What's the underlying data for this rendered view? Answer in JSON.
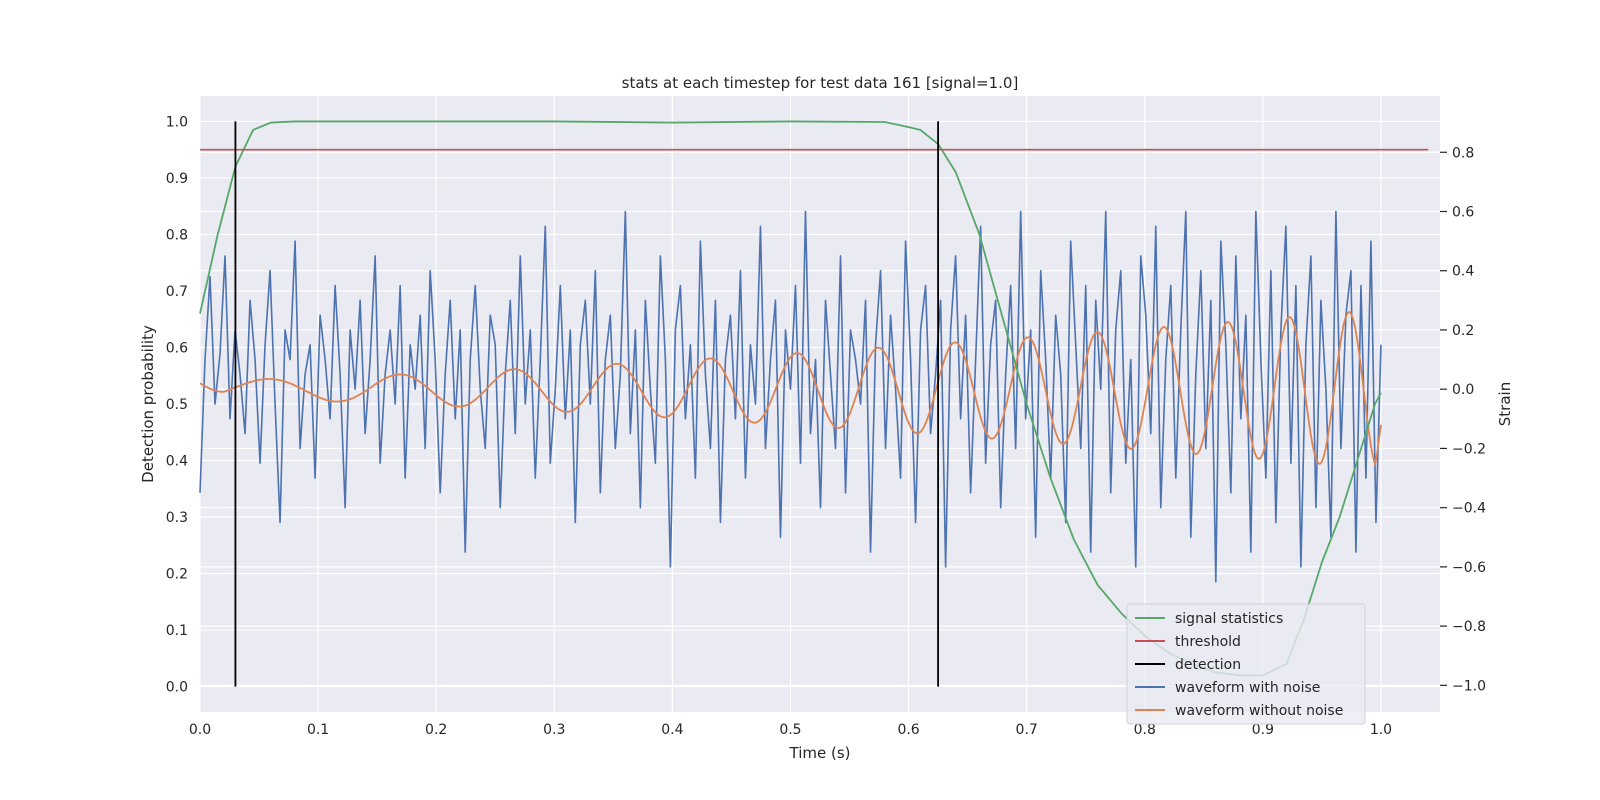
{
  "chart_data": {
    "type": "line",
    "title": "stats at each timestep for test data 161 [signal=1.0]",
    "xlabel": "Time (s)",
    "ylabel_left": "Detection probability",
    "ylabel_right": "Strain",
    "xlim": [
      0.0,
      1.05
    ],
    "ylim_left": [
      -0.045,
      1.045
    ],
    "ylim_right": [
      -1.09,
      0.99
    ],
    "x_ticks": [
      "0.0",
      "0.1",
      "0.2",
      "0.3",
      "0.4",
      "0.5",
      "0.6",
      "0.7",
      "0.8",
      "0.9",
      "1.0"
    ],
    "y_ticks_left": [
      "0.0",
      "0.1",
      "0.2",
      "0.3",
      "0.4",
      "0.5",
      "0.6",
      "0.7",
      "0.8",
      "0.9",
      "1.0"
    ],
    "y_ticks_right": [
      "−1.0",
      "−0.8",
      "−0.6",
      "−0.4",
      "−0.2",
      "0.0",
      "0.2",
      "0.4",
      "0.6",
      "0.8"
    ],
    "grid": true,
    "legend_position": "lower-right",
    "colors": {
      "signal_statistics": "#55a868",
      "threshold": "#c44e52",
      "detection": "#000000",
      "waveform_with_noise": "#4c72b0",
      "waveform_without_noise": "#dd8452",
      "plot_background": "#eaeaf2",
      "grid": "#ffffff"
    },
    "series": [
      {
        "name": "signal statistics",
        "axis": "left",
        "x": [
          0.0,
          0.015,
          0.03,
          0.045,
          0.06,
          0.08,
          0.1,
          0.2,
          0.3,
          0.4,
          0.5,
          0.58,
          0.6,
          0.61,
          0.625,
          0.64,
          0.66,
          0.68,
          0.7,
          0.72,
          0.74,
          0.76,
          0.78,
          0.8,
          0.82,
          0.84,
          0.86,
          0.88,
          0.9,
          0.92,
          0.935,
          0.95,
          0.965,
          0.98,
          0.995,
          1.0
        ],
        "values": [
          0.66,
          0.8,
          0.92,
          0.985,
          0.998,
          1.0,
          1.0,
          1.0,
          1.0,
          0.998,
          1.0,
          0.999,
          0.99,
          0.985,
          0.96,
          0.91,
          0.8,
          0.65,
          0.5,
          0.37,
          0.26,
          0.18,
          0.13,
          0.09,
          0.06,
          0.04,
          0.025,
          0.02,
          0.02,
          0.04,
          0.12,
          0.22,
          0.3,
          0.4,
          0.5,
          0.52
        ]
      },
      {
        "name": "threshold",
        "axis": "left",
        "x": [
          0.0,
          1.04
        ],
        "values": [
          0.95,
          0.95
        ]
      },
      {
        "name": "detection",
        "axis": "left",
        "x": [
          0.03,
          0.625
        ],
        "values": [
          1.0,
          1.0
        ],
        "style": "vertical lines from 0.0 to value"
      },
      {
        "name": "waveform with noise",
        "axis": "right",
        "x_start": 0.0,
        "x_end": 1.0,
        "values": [
          -0.35,
          0.1,
          0.38,
          -0.05,
          0.12,
          0.45,
          -0.1,
          0.2,
          0.05,
          -0.15,
          0.3,
          0.1,
          -0.25,
          0.15,
          0.4,
          -0.05,
          -0.45,
          0.2,
          0.1,
          0.5,
          -0.2,
          0.05,
          0.15,
          -0.3,
          0.25,
          0.1,
          -0.1,
          0.35,
          0.05,
          -0.4,
          0.2,
          0.0,
          0.3,
          -0.15,
          0.1,
          0.45,
          -0.25,
          0.05,
          0.2,
          -0.05,
          0.35,
          -0.3,
          0.15,
          0.0,
          0.25,
          -0.2,
          0.4,
          0.1,
          -0.35,
          0.05,
          0.3,
          -0.1,
          0.2,
          -0.55,
          0.1,
          0.35,
          0.0,
          -0.2,
          0.25,
          0.15,
          -0.4,
          0.05,
          0.3,
          -0.15,
          0.45,
          -0.05,
          0.2,
          -0.3,
          0.1,
          0.55,
          -0.25,
          0.0,
          0.35,
          -0.1,
          0.2,
          -0.45,
          0.15,
          0.3,
          -0.05,
          0.4,
          -0.35,
          0.1,
          0.25,
          -0.2,
          0.05,
          0.6,
          -0.15,
          0.2,
          -0.4,
          0.3,
          0.0,
          -0.25,
          0.45,
          0.1,
          -0.6,
          0.2,
          0.35,
          -0.1,
          0.15,
          -0.3,
          0.5,
          0.05,
          -0.2,
          0.3,
          -0.45,
          0.1,
          0.25,
          -0.1,
          0.4,
          -0.3,
          0.15,
          -0.05,
          0.55,
          -0.2,
          0.1,
          0.3,
          -0.5,
          0.2,
          0.0,
          0.35,
          -0.25,
          0.6,
          -0.15,
          0.1,
          -0.4,
          0.3,
          0.05,
          -0.2,
          0.45,
          -0.35,
          0.2,
          0.1,
          -0.05,
          0.3,
          -0.55,
          0.15,
          0.4,
          -0.2,
          0.25,
          0.0,
          -0.3,
          0.5,
          0.1,
          -0.45,
          0.2,
          0.35,
          -0.15,
          0.05,
          0.3,
          -0.6,
          0.2,
          0.45,
          -0.1,
          0.25,
          -0.35,
          0.1,
          0.55,
          -0.25,
          0.15,
          0.3,
          -0.4,
          0.05,
          0.35,
          -0.2,
          0.6,
          -0.1,
          0.2,
          -0.5,
          0.4,
          0.1,
          -0.3,
          0.25,
          0.05,
          -0.45,
          0.5,
          0.15,
          -0.2,
          0.35,
          -0.55,
          0.3,
          0.0,
          0.6,
          -0.35,
          0.2,
          0.4,
          -0.25,
          0.1,
          -0.6,
          0.45,
          0.25,
          -0.15,
          0.55,
          -0.4,
          0.1,
          0.35,
          -0.3,
          0.2,
          0.6,
          -0.5,
          0.05,
          0.4,
          -0.2,
          0.3,
          -0.65,
          0.5,
          0.15,
          -0.35,
          0.45,
          -0.1,
          0.25,
          -0.55,
          0.6,
          0.1,
          -0.3,
          0.4,
          -0.45,
          0.2,
          0.55,
          -0.25,
          0.35,
          -0.6,
          0.15,
          0.45,
          -0.4,
          0.3,
          0.0,
          -0.5,
          0.6,
          -0.2,
          0.25,
          0.4,
          -0.55,
          0.35,
          -0.3,
          0.5,
          -0.45,
          0.15
        ]
      },
      {
        "name": "waveform without noise",
        "axis": "right",
        "x_start": 0.0,
        "x_end": 1.0,
        "model": "chirp",
        "amplitude_start": 0.03,
        "amplitude_end": 0.27,
        "frequency_start_hz": 7.5,
        "frequency_end_hz": 20.5,
        "start_value": 0.02,
        "end_value": -0.12
      }
    ]
  }
}
